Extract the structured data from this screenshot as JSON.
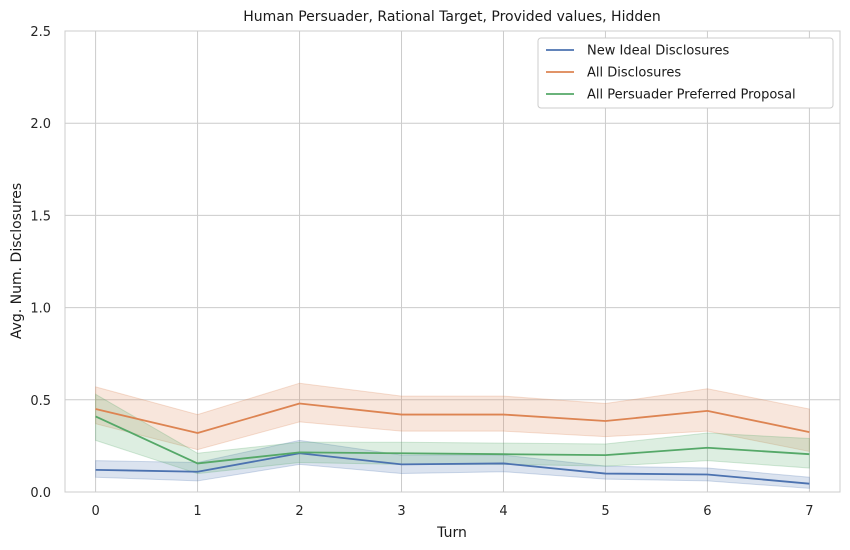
{
  "chart_data": {
    "type": "line",
    "title": "Human Persuader, Rational Target, Provided values, Hidden",
    "xlabel": "Turn",
    "ylabel": "Avg. Num. Disclosures",
    "x": [
      0,
      1,
      2,
      3,
      4,
      5,
      6,
      7
    ],
    "xlim": [
      -0.3,
      7.3
    ],
    "ylim": [
      0,
      2.5
    ],
    "xticks": [
      "0",
      "1",
      "2",
      "3",
      "4",
      "5",
      "6",
      "7"
    ],
    "yticks": [
      "0.0",
      "0.5",
      "1.0",
      "1.5",
      "2.0",
      "2.5"
    ],
    "grid": true,
    "legend_position": "top-right",
    "series": [
      {
        "name": "New Ideal Disclosures",
        "color": "#4c72b0",
        "values": [
          0.12,
          0.11,
          0.21,
          0.15,
          0.155,
          0.1,
          0.095,
          0.045
        ],
        "lower": [
          0.08,
          0.06,
          0.15,
          0.1,
          0.11,
          0.07,
          0.06,
          0.02
        ],
        "upper": [
          0.17,
          0.16,
          0.28,
          0.2,
          0.2,
          0.14,
          0.13,
          0.08
        ]
      },
      {
        "name": "All Disclosures",
        "color": "#dd8452",
        "values": [
          0.45,
          0.32,
          0.48,
          0.42,
          0.42,
          0.385,
          0.44,
          0.325
        ],
        "lower": [
          0.37,
          0.23,
          0.38,
          0.33,
          0.33,
          0.3,
          0.33,
          0.22
        ],
        "upper": [
          0.57,
          0.42,
          0.59,
          0.52,
          0.52,
          0.48,
          0.56,
          0.45
        ]
      },
      {
        "name": "All Persuader Preferred Proposal",
        "color": "#55a868",
        "values": [
          0.41,
          0.155,
          0.215,
          0.21,
          0.205,
          0.2,
          0.24,
          0.205
        ],
        "lower": [
          0.28,
          0.1,
          0.16,
          0.15,
          0.15,
          0.14,
          0.17,
          0.13
        ],
        "upper": [
          0.53,
          0.21,
          0.27,
          0.27,
          0.265,
          0.26,
          0.32,
          0.29
        ]
      }
    ]
  }
}
